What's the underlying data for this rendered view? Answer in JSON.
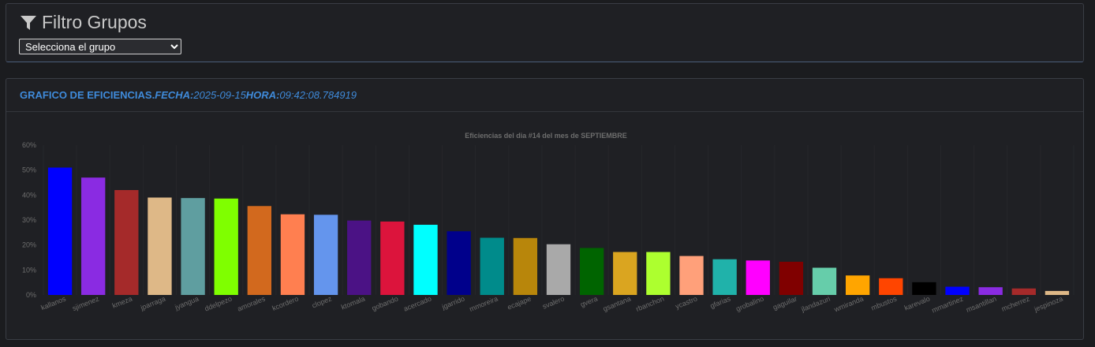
{
  "filter": {
    "title": "Filtro Grupos",
    "icon": "filter-icon",
    "select_value": "Selecciona el grupo"
  },
  "chart_panel": {
    "heading_lead": "GRAFICO DE EFICIENCIAS.",
    "fecha_label": "FECHA:",
    "fecha_value": "2025-09-15",
    "hora_label": "HORA:",
    "hora_value": "09:42:08.784919"
  },
  "chart_data": {
    "type": "bar",
    "title": "Eficiencias del dia #14 del mes de SEPTIEMBRE",
    "ylim": [
      0,
      60
    ],
    "y_ticks": [
      "0%",
      "10%",
      "20%",
      "30%",
      "40%",
      "50%",
      "60%"
    ],
    "categories": [
      "kallanos",
      "sjimenez",
      "kmeza",
      "jparraga",
      "jyangua",
      "ddelpezo",
      "amorales",
      "kcordero",
      "clopez",
      "ktomala",
      "gobando",
      "acercado",
      "jgarrido",
      "mmoreira",
      "ecajape",
      "svalero",
      "gvera",
      "gsantana",
      "rbanchon",
      "ycastro",
      "gfarias",
      "grobalino",
      "gaguilar",
      "jlandazuri",
      "wmiranda",
      "mbustos",
      "karevalo",
      "mmartinez",
      "msantillan",
      "mcherrez",
      "jespinoza"
    ],
    "values": [
      51,
      47,
      42,
      39,
      38.8,
      38.6,
      35.6,
      32.3,
      32.1,
      29.8,
      29.4,
      28.1,
      25.5,
      22.9,
      22.8,
      20.3,
      18.8,
      17.2,
      17.2,
      15.6,
      14.3,
      13.8,
      13.3,
      10.9,
      7.8,
      6.7,
      5.1,
      3.3,
      3.1,
      2.6,
      1.6
    ],
    "colors": [
      "#0000ff",
      "#8a2be2",
      "#a52a2a",
      "#deb887",
      "#5f9ea0",
      "#7fff00",
      "#d2691e",
      "#ff7f50",
      "#6495ed",
      "#4b1285",
      "#dc143c",
      "#00ffff",
      "#00008b",
      "#008b8b",
      "#b8860b",
      "#a9a9a9",
      "#006400",
      "#daa520",
      "#adff2f",
      "#ffa07a",
      "#20b2aa",
      "#ff00ff",
      "#800000",
      "#66cdaa",
      "#ffa500",
      "#ff4500",
      "#000000",
      "#0000ff",
      "#8a2be2",
      "#a52a2a",
      "#deb887"
    ],
    "grid": true
  }
}
